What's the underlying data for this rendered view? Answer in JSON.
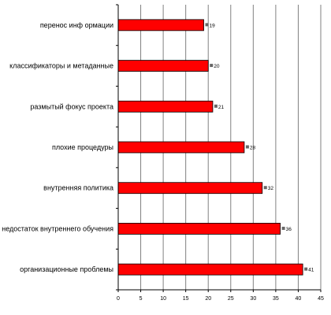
{
  "chart_data": {
    "type": "bar",
    "orientation": "horizontal",
    "title": "",
    "xlabel": "",
    "ylabel": "",
    "categories": [
      "перенос инф ормации",
      "классификаторы и метаданные",
      "размытый фокус проекта",
      "плохие процедуры",
      "внутренняя политика",
      "недостаток внутреннего обучения",
      "организационные проблемы"
    ],
    "values": [
      19,
      20,
      21,
      28,
      32,
      36,
      41
    ],
    "data_labels": [
      "19",
      "20",
      "21",
      "28",
      "32",
      "36",
      "41"
    ],
    "xlim": [
      0,
      45
    ],
    "xticks": [
      0,
      5,
      10,
      15,
      20,
      25,
      30,
      35,
      40,
      45
    ],
    "grid": "vertical",
    "legend": "none",
    "colors": {
      "bar": "#ff0000",
      "bar_edge": "#000000",
      "grid": "#808080",
      "marker": "#666666"
    }
  }
}
